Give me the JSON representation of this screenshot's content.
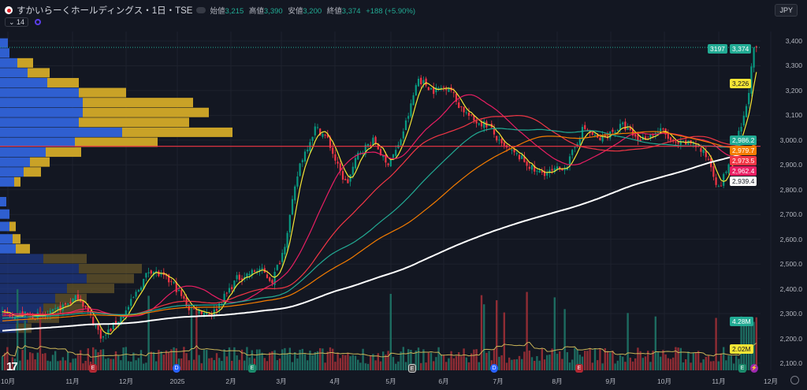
{
  "header": {
    "symbol": "すかいらーくホールディングス・1日・TSE",
    "open_label": "始値",
    "open": "3,215",
    "high_label": "高値",
    "high": "3,390",
    "low_label": "安値",
    "low": "3,200",
    "close_label": "終値",
    "close": "3,374",
    "change": "+188 (+5.90%)",
    "indicator_count": "14",
    "currency": "JPY"
  },
  "price_tags": [
    {
      "text": "3197",
      "color": "#22ab94"
    },
    {
      "text": "3,374",
      "color": "#22ab94"
    },
    {
      "text": "3,226",
      "color": "#f5e535"
    },
    {
      "text": "2,986.2",
      "color": "#22ab94"
    },
    {
      "text": "2,979.7",
      "color": "#f57c00"
    },
    {
      "text": "2,973.5",
      "color": "#f23645"
    },
    {
      "text": "2,962.4",
      "color": "#e91e63"
    },
    {
      "text": "2,939.4",
      "color": "#ffffff"
    },
    {
      "text": "4.28M",
      "color": "#22ab94"
    },
    {
      "text": "2.02M",
      "color": "#f5e535"
    }
  ],
  "y_ticks": [
    "3,400",
    "3,300",
    "3,200",
    "3,100",
    "3,000.0",
    "2,900.0",
    "2,800.0",
    "2,700.0",
    "2,600.0",
    "2,500.0",
    "2,400.0",
    "2,300.0",
    "2,200.0",
    "2,100.0"
  ],
  "x_ticks": [
    "10月",
    "11月",
    "12月",
    "2025",
    "2月",
    "3月",
    "4月",
    "5月",
    "6月",
    "7月",
    "8月",
    "9月",
    "10月",
    "11月",
    "12月"
  ],
  "events": [
    {
      "t": "E",
      "c": "#b22833"
    },
    {
      "t": "D",
      "c": "#2962ff"
    },
    {
      "t": "E",
      "c": "#1b8a6b"
    },
    {
      "t": "E",
      "c": "#555"
    },
    {
      "t": "D",
      "c": "#2962ff"
    },
    {
      "t": "E",
      "c": "#b22833"
    },
    {
      "t": "E",
      "c": "#1b8a6b"
    },
    {
      "t": "⚡",
      "c": "#9c27b0"
    }
  ],
  "chart_data": {
    "type": "candlestick",
    "title": "すかいらーくホールディングス・1日・TSE",
    "ylim": [
      2050,
      3420
    ],
    "close_path": [
      [
        0,
        2300
      ],
      [
        60,
        2290
      ],
      [
        100,
        2370
      ],
      [
        130,
        2200
      ],
      [
        160,
        2310
      ],
      [
        190,
        2480
      ],
      [
        220,
        2420
      ],
      [
        240,
        2320
      ],
      [
        270,
        2300
      ],
      [
        300,
        2440
      ],
      [
        330,
        2480
      ],
      [
        345,
        2430
      ],
      [
        360,
        2560
      ],
      [
        380,
        2900
      ],
      [
        400,
        3050
      ],
      [
        415,
        3010
      ],
      [
        430,
        2880
      ],
      [
        440,
        2820
      ],
      [
        455,
        2950
      ],
      [
        475,
        3000
      ],
      [
        490,
        2900
      ],
      [
        505,
        2970
      ],
      [
        520,
        3120
      ],
      [
        530,
        3250
      ],
      [
        550,
        3200
      ],
      [
        570,
        3220
      ],
      [
        580,
        3150
      ],
      [
        600,
        3080
      ],
      [
        620,
        3060
      ],
      [
        635,
        2980
      ],
      [
        660,
        2930
      ],
      [
        680,
        2870
      ],
      [
        700,
        2870
      ],
      [
        720,
        2900
      ],
      [
        740,
        3050
      ],
      [
        760,
        3000
      ],
      [
        790,
        3060
      ],
      [
        810,
        3000
      ],
      [
        840,
        3040
      ],
      [
        855,
        2980
      ],
      [
        880,
        2990
      ],
      [
        900,
        2920
      ],
      [
        912,
        2800
      ],
      [
        930,
        2950
      ],
      [
        945,
        3100
      ],
      [
        950,
        3200
      ],
      [
        957,
        3374
      ]
    ],
    "horizontal_line": 2975,
    "volume_profile": [
      [
        3390,
        10,
        0
      ],
      [
        3350,
        12,
        0
      ],
      [
        3310,
        22,
        20
      ],
      [
        3270,
        35,
        28
      ],
      [
        3230,
        60,
        40
      ],
      [
        3190,
        100,
        60
      ],
      [
        3150,
        105,
        140
      ],
      [
        3110,
        105,
        160
      ],
      [
        3070,
        100,
        140
      ],
      [
        3030,
        155,
        140
      ],
      [
        2990,
        95,
        105
      ],
      [
        2950,
        58,
        45
      ],
      [
        2910,
        38,
        25
      ],
      [
        2870,
        30,
        22
      ],
      [
        2830,
        18,
        8
      ],
      [
        2750,
        8,
        0
      ],
      [
        2700,
        12,
        0
      ],
      [
        2650,
        12,
        8
      ],
      [
        2600,
        16,
        10
      ],
      [
        2560,
        20,
        18
      ],
      [
        2520,
        55,
        55
      ],
      [
        2480,
        100,
        80
      ],
      [
        2440,
        110,
        60
      ],
      [
        2400,
        85,
        60
      ],
      [
        2360,
        70,
        40
      ],
      [
        2320,
        55,
        50
      ],
      [
        2280,
        35,
        40
      ],
      [
        2240,
        20,
        20
      ]
    ]
  }
}
